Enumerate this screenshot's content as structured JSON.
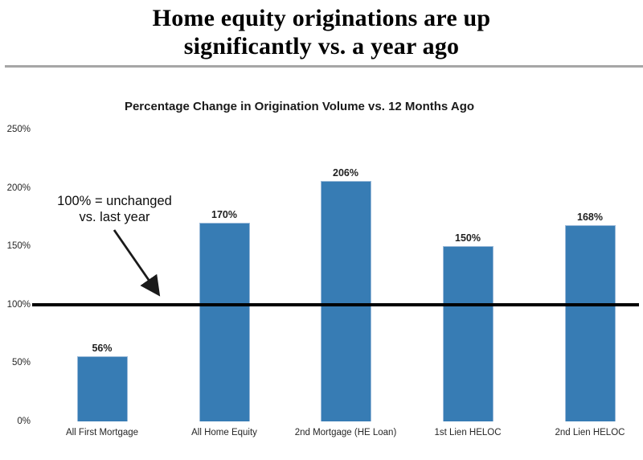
{
  "header": {
    "title_line1": "Home equity originations are up",
    "title_line2": "significantly vs. a year ago"
  },
  "colors": {
    "divider": "#A6A6A6",
    "bar_fill": "#377CB4",
    "bar_border": "#9BBAD9",
    "reference_line": "#000000",
    "arrow": "#1a1a1a"
  },
  "chart_data": {
    "type": "bar",
    "title": "Percentage Change in Origination Volume vs. 12 Months Ago",
    "categories": [
      "All First Mortgage",
      "All Home Equity",
      "2nd Mortgage (HE Loan)",
      "1st Lien HELOC",
      "2nd Lien HELOC"
    ],
    "values": [
      56,
      170,
      206,
      150,
      168
    ],
    "value_labels": [
      "56%",
      "170%",
      "206%",
      "150%",
      "168%"
    ],
    "ylim": [
      0,
      250
    ],
    "ytick_values": [
      0,
      50,
      100,
      150,
      200,
      250
    ],
    "ytick_labels": [
      "0%",
      "50%",
      "100%",
      "150%",
      "200%",
      "250%"
    ],
    "grid": false,
    "legend": "none",
    "reference_line": {
      "value": 100
    },
    "annotation": {
      "line1": "100% = unchanged",
      "line2": "vs. last year"
    }
  }
}
